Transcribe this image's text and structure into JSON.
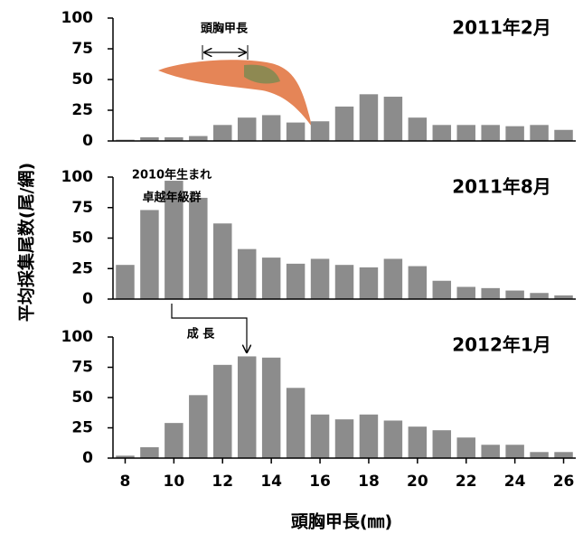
{
  "ylabel": "平均採集尾数(尾/網)",
  "xlabel": "頭胸甲長(㎜)",
  "chart_data": [
    {
      "type": "bar",
      "title": "2011年2月",
      "color": "#8c8c8c",
      "x": [
        8,
        9,
        10,
        11,
        12,
        13,
        14,
        15,
        16,
        17,
        18,
        19,
        20,
        21,
        22,
        23,
        24,
        25,
        26
      ],
      "values": [
        1,
        3,
        3,
        4,
        13,
        19,
        21,
        15,
        16,
        28,
        38,
        36,
        19,
        13,
        13,
        13,
        12,
        13,
        9
      ],
      "xlim": [
        7.5,
        26.5
      ],
      "ylim": [
        0,
        100
      ],
      "yticks": [
        0,
        25,
        50,
        75,
        100
      ],
      "annotations": [
        "頭胸甲長"
      ]
    },
    {
      "type": "bar",
      "title": "2011年8月",
      "color": "#8c8c8c",
      "x": [
        8,
        9,
        10,
        11,
        12,
        13,
        14,
        15,
        16,
        17,
        18,
        19,
        20,
        21,
        22,
        23,
        24,
        25,
        26
      ],
      "values": [
        28,
        73,
        97,
        83,
        62,
        41,
        34,
        29,
        33,
        28,
        26,
        33,
        27,
        15,
        10,
        9,
        7,
        5,
        3
      ],
      "xlim": [
        7.5,
        26.5
      ],
      "ylim": [
        0,
        100
      ],
      "yticks": [
        0,
        25,
        50,
        75,
        100
      ],
      "annotations": [
        "2010年生まれ",
        "卓越年級群"
      ]
    },
    {
      "type": "bar",
      "title": "2012年1月",
      "color": "#8c8c8c",
      "x": [
        8,
        9,
        10,
        11,
        12,
        13,
        14,
        15,
        16,
        17,
        18,
        19,
        20,
        21,
        22,
        23,
        24,
        25,
        26
      ],
      "values": [
        2,
        9,
        29,
        52,
        77,
        84,
        83,
        58,
        36,
        32,
        36,
        31,
        26,
        23,
        17,
        11,
        11,
        5,
        5
      ],
      "xlim": [
        7.5,
        26.5
      ],
      "ylim": [
        0,
        100
      ],
      "yticks": [
        0,
        25,
        50,
        75,
        100
      ],
      "xticks": [
        8,
        10,
        12,
        14,
        16,
        18,
        20,
        22,
        24,
        26
      ],
      "annotations": [
        "成 長"
      ]
    }
  ]
}
